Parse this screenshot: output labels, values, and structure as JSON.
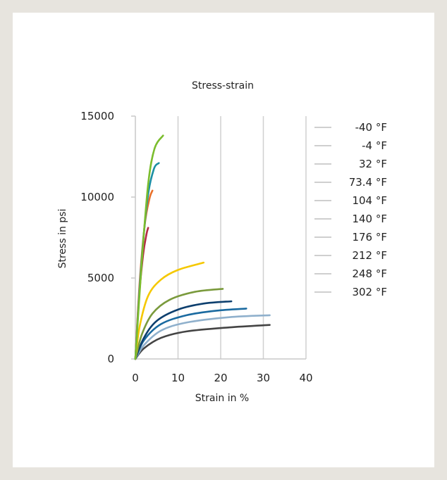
{
  "chart_data": {
    "type": "line",
    "title": "Stress-strain",
    "xlabel": "Strain in %",
    "ylabel": "Stress in psi",
    "xlim": [
      0,
      40
    ],
    "ylim": [
      0,
      15000
    ],
    "xticks": [
      "0",
      "10",
      "20",
      "30",
      "40"
    ],
    "yticks": [
      "0",
      "5000",
      "10000",
      "15000"
    ],
    "grid": "vertical",
    "legend_position": "right",
    "series": [
      {
        "name": "-40 °F",
        "color": "#7bbd2e",
        "x": [
          0,
          1.5,
          3,
          4.5,
          6.5
        ],
        "y": [
          0,
          6000,
          10800,
          13000,
          13800
        ]
      },
      {
        "name": "-4 °F",
        "color": "#1b8fa3",
        "x": [
          0,
          1.3,
          2.8,
          4.3,
          5.5
        ],
        "y": [
          0,
          5500,
          9800,
          11700,
          12100
        ]
      },
      {
        "name": "32 °F",
        "color": "#e8702a",
        "x": [
          0,
          1.0,
          2.2,
          3.3,
          4.0
        ],
        "y": [
          0,
          4700,
          8300,
          9900,
          10400
        ]
      },
      {
        "name": "73.4 °F",
        "color": "#b52a45",
        "x": [
          0,
          0.8,
          1.8,
          2.6,
          3.0
        ],
        "y": [
          0,
          3600,
          6400,
          7700,
          8100
        ]
      },
      {
        "name": "104 °F",
        "color": "#f5c800",
        "x": [
          0,
          1,
          3,
          6,
          10,
          16
        ],
        "y": [
          0,
          2000,
          3900,
          4900,
          5500,
          5950
        ]
      },
      {
        "name": "140 °F",
        "color": "#7a9a3c",
        "x": [
          0,
          1.5,
          4,
          8,
          14,
          20.5
        ],
        "y": [
          0,
          1500,
          2800,
          3650,
          4150,
          4330
        ]
      },
      {
        "name": "176 °F",
        "color": "#0d3f6e",
        "x": [
          0,
          2,
          5,
          10,
          16,
          22.5
        ],
        "y": [
          0,
          1300,
          2350,
          3050,
          3420,
          3560
        ]
      },
      {
        "name": "212 °F",
        "color": "#1a6aa0",
        "x": [
          0,
          2,
          6,
          12,
          19,
          26
        ],
        "y": [
          0,
          1150,
          2150,
          2700,
          2980,
          3110
        ]
      },
      {
        "name": "248 °F",
        "color": "#8fb0cc",
        "x": [
          0,
          2,
          6,
          12,
          22,
          31.5
        ],
        "y": [
          0,
          850,
          1750,
          2250,
          2580,
          2700
        ]
      },
      {
        "name": "302 °F",
        "color": "#444444",
        "x": [
          0,
          2,
          6,
          12,
          22,
          31.5
        ],
        "y": [
          0,
          650,
          1300,
          1700,
          1950,
          2100
        ]
      }
    ]
  }
}
